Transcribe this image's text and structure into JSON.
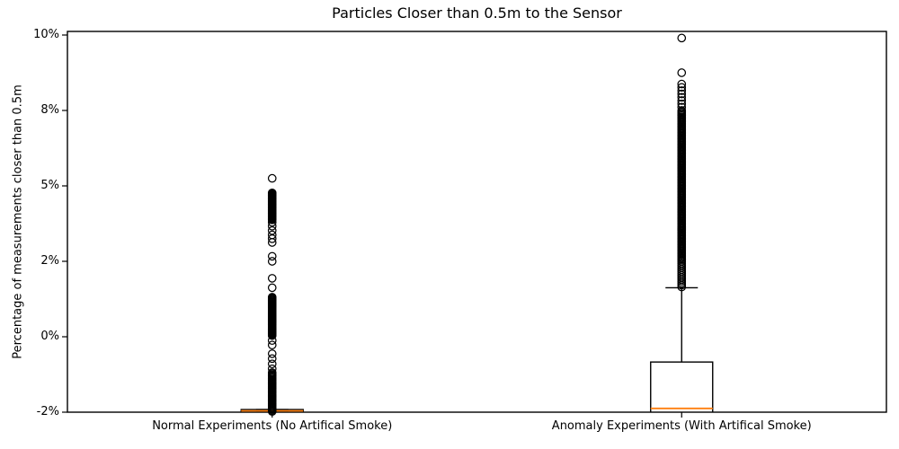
{
  "chart_data": {
    "type": "boxplot",
    "title": "Particles Closer than 0.5m to the Sensor",
    "ylabel": "Percentage of measurements closer than 0.5m",
    "xlabel": "",
    "categories": [
      "Normal Experiments (No Artifical Smoke)",
      "Anomaly Experiments (With Artifical Smoke)"
    ],
    "y_ticks": {
      "values": [
        -2,
        0,
        2,
        5,
        8,
        10
      ],
      "labels": [
        "-2%",
        "0%",
        "2%",
        "5%",
        "8%",
        "10%"
      ],
      "spacing": "uniform-positions-nonlinear-values"
    },
    "ylim": [
      -2,
      10.1
    ],
    "grid": false,
    "legend": "none",
    "median_color": "#ff7f0e",
    "line_color": "#000000",
    "series": [
      {
        "name": "Normal Experiments (No Artifical Smoke)",
        "box": {
          "whisker_low": -2.0,
          "q1": -2.0,
          "median": -1.965,
          "q3": -1.93,
          "whisker_high": -1.93
        },
        "outliers": [
          5.3,
          3.55,
          3.4,
          3.22,
          3.05,
          2.9,
          2.75,
          2.2,
          2.0,
          1.55,
          1.3,
          -0.1,
          -0.22,
          -0.45,
          -0.58,
          -0.72,
          -0.85
        ],
        "outlier_clusters": [
          {
            "min": 3.65,
            "max": 4.72,
            "count": 40
          },
          {
            "min": 0.03,
            "max": 1.05,
            "count": 45
          },
          {
            "min": -1.98,
            "max": -0.95,
            "count": 35
          }
        ]
      },
      {
        "name": "Anomaly Experiments (With Artifical Smoke)",
        "box": {
          "whisker_low": -2.1,
          "q1": -2.06,
          "median": -1.9,
          "q3": -0.67,
          "whisker_high": 1.3
        },
        "outliers": [
          9.92,
          9.0
        ],
        "outlier_clusters": [
          {
            "min": 8.0,
            "max": 8.7,
            "count": 9
          },
          {
            "min": 1.32,
            "max": 7.95,
            "count": 130
          }
        ]
      }
    ]
  }
}
